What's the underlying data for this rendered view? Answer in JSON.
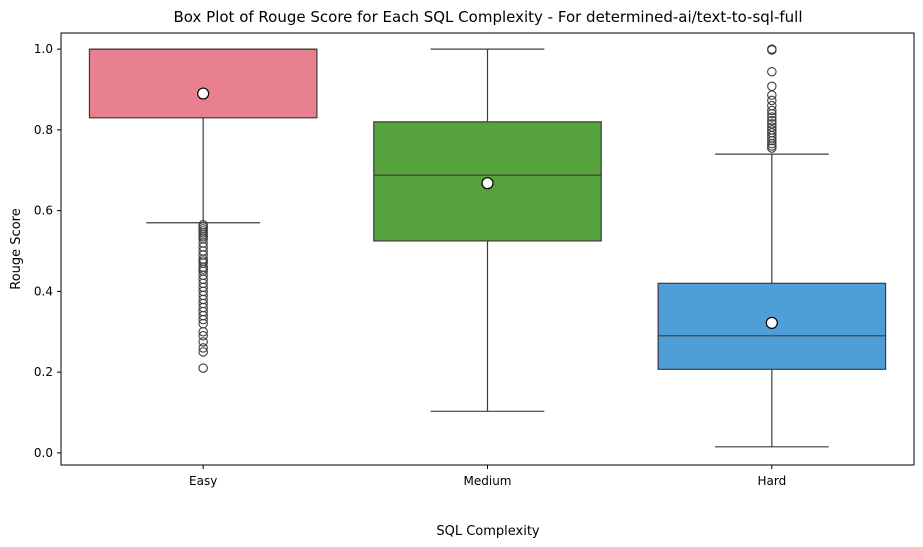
{
  "chart_data": {
    "type": "box",
    "title": "Box Plot of Rouge Score for Each SQL Complexity - For determined-ai/text-to-sql-full",
    "xlabel": "SQL Complexity",
    "ylabel": "Rouge Score",
    "ylim": [
      -0.03,
      1.04
    ],
    "yticks": [
      0.0,
      0.2,
      0.4,
      0.6,
      0.8,
      1.0
    ],
    "ytick_labels": [
      "0.0",
      "0.2",
      "0.4",
      "0.6",
      "0.8",
      "1.0"
    ],
    "grid": false,
    "legend": "none",
    "categories": [
      {
        "name": "Easy",
        "color": "#E8808F",
        "whisker_low": 0.57,
        "q1": 0.83,
        "median": 1.0,
        "q3": 1.0,
        "whisker_high": 1.0,
        "mean": 0.89,
        "outliers": [
          0.565,
          0.56,
          0.555,
          0.55,
          0.545,
          0.54,
          0.535,
          0.53,
          0.52,
          0.51,
          0.5,
          0.49,
          0.48,
          0.475,
          0.47,
          0.46,
          0.455,
          0.45,
          0.44,
          0.43,
          0.42,
          0.41,
          0.4,
          0.39,
          0.38,
          0.37,
          0.36,
          0.35,
          0.34,
          0.33,
          0.32,
          0.3,
          0.29,
          0.275,
          0.26,
          0.25,
          0.21
        ]
      },
      {
        "name": "Medium",
        "color": "#56A23D",
        "whisker_low": 0.103,
        "q1": 0.525,
        "median": 0.688,
        "q3": 0.82,
        "whisker_high": 1.0,
        "mean": 0.668,
        "outliers": []
      },
      {
        "name": "Hard",
        "color": "#4E9ED8",
        "whisker_low": 0.015,
        "q1": 0.207,
        "median": 0.29,
        "q3": 0.42,
        "whisker_high": 0.74,
        "mean": 0.322,
        "outliers": [
          1.0,
          0.998,
          0.944,
          0.908,
          0.886,
          0.873,
          0.86,
          0.848,
          0.84,
          0.832,
          0.823,
          0.815,
          0.807,
          0.8,
          0.793,
          0.786,
          0.78,
          0.773,
          0.766,
          0.76,
          0.755
        ]
      }
    ]
  }
}
